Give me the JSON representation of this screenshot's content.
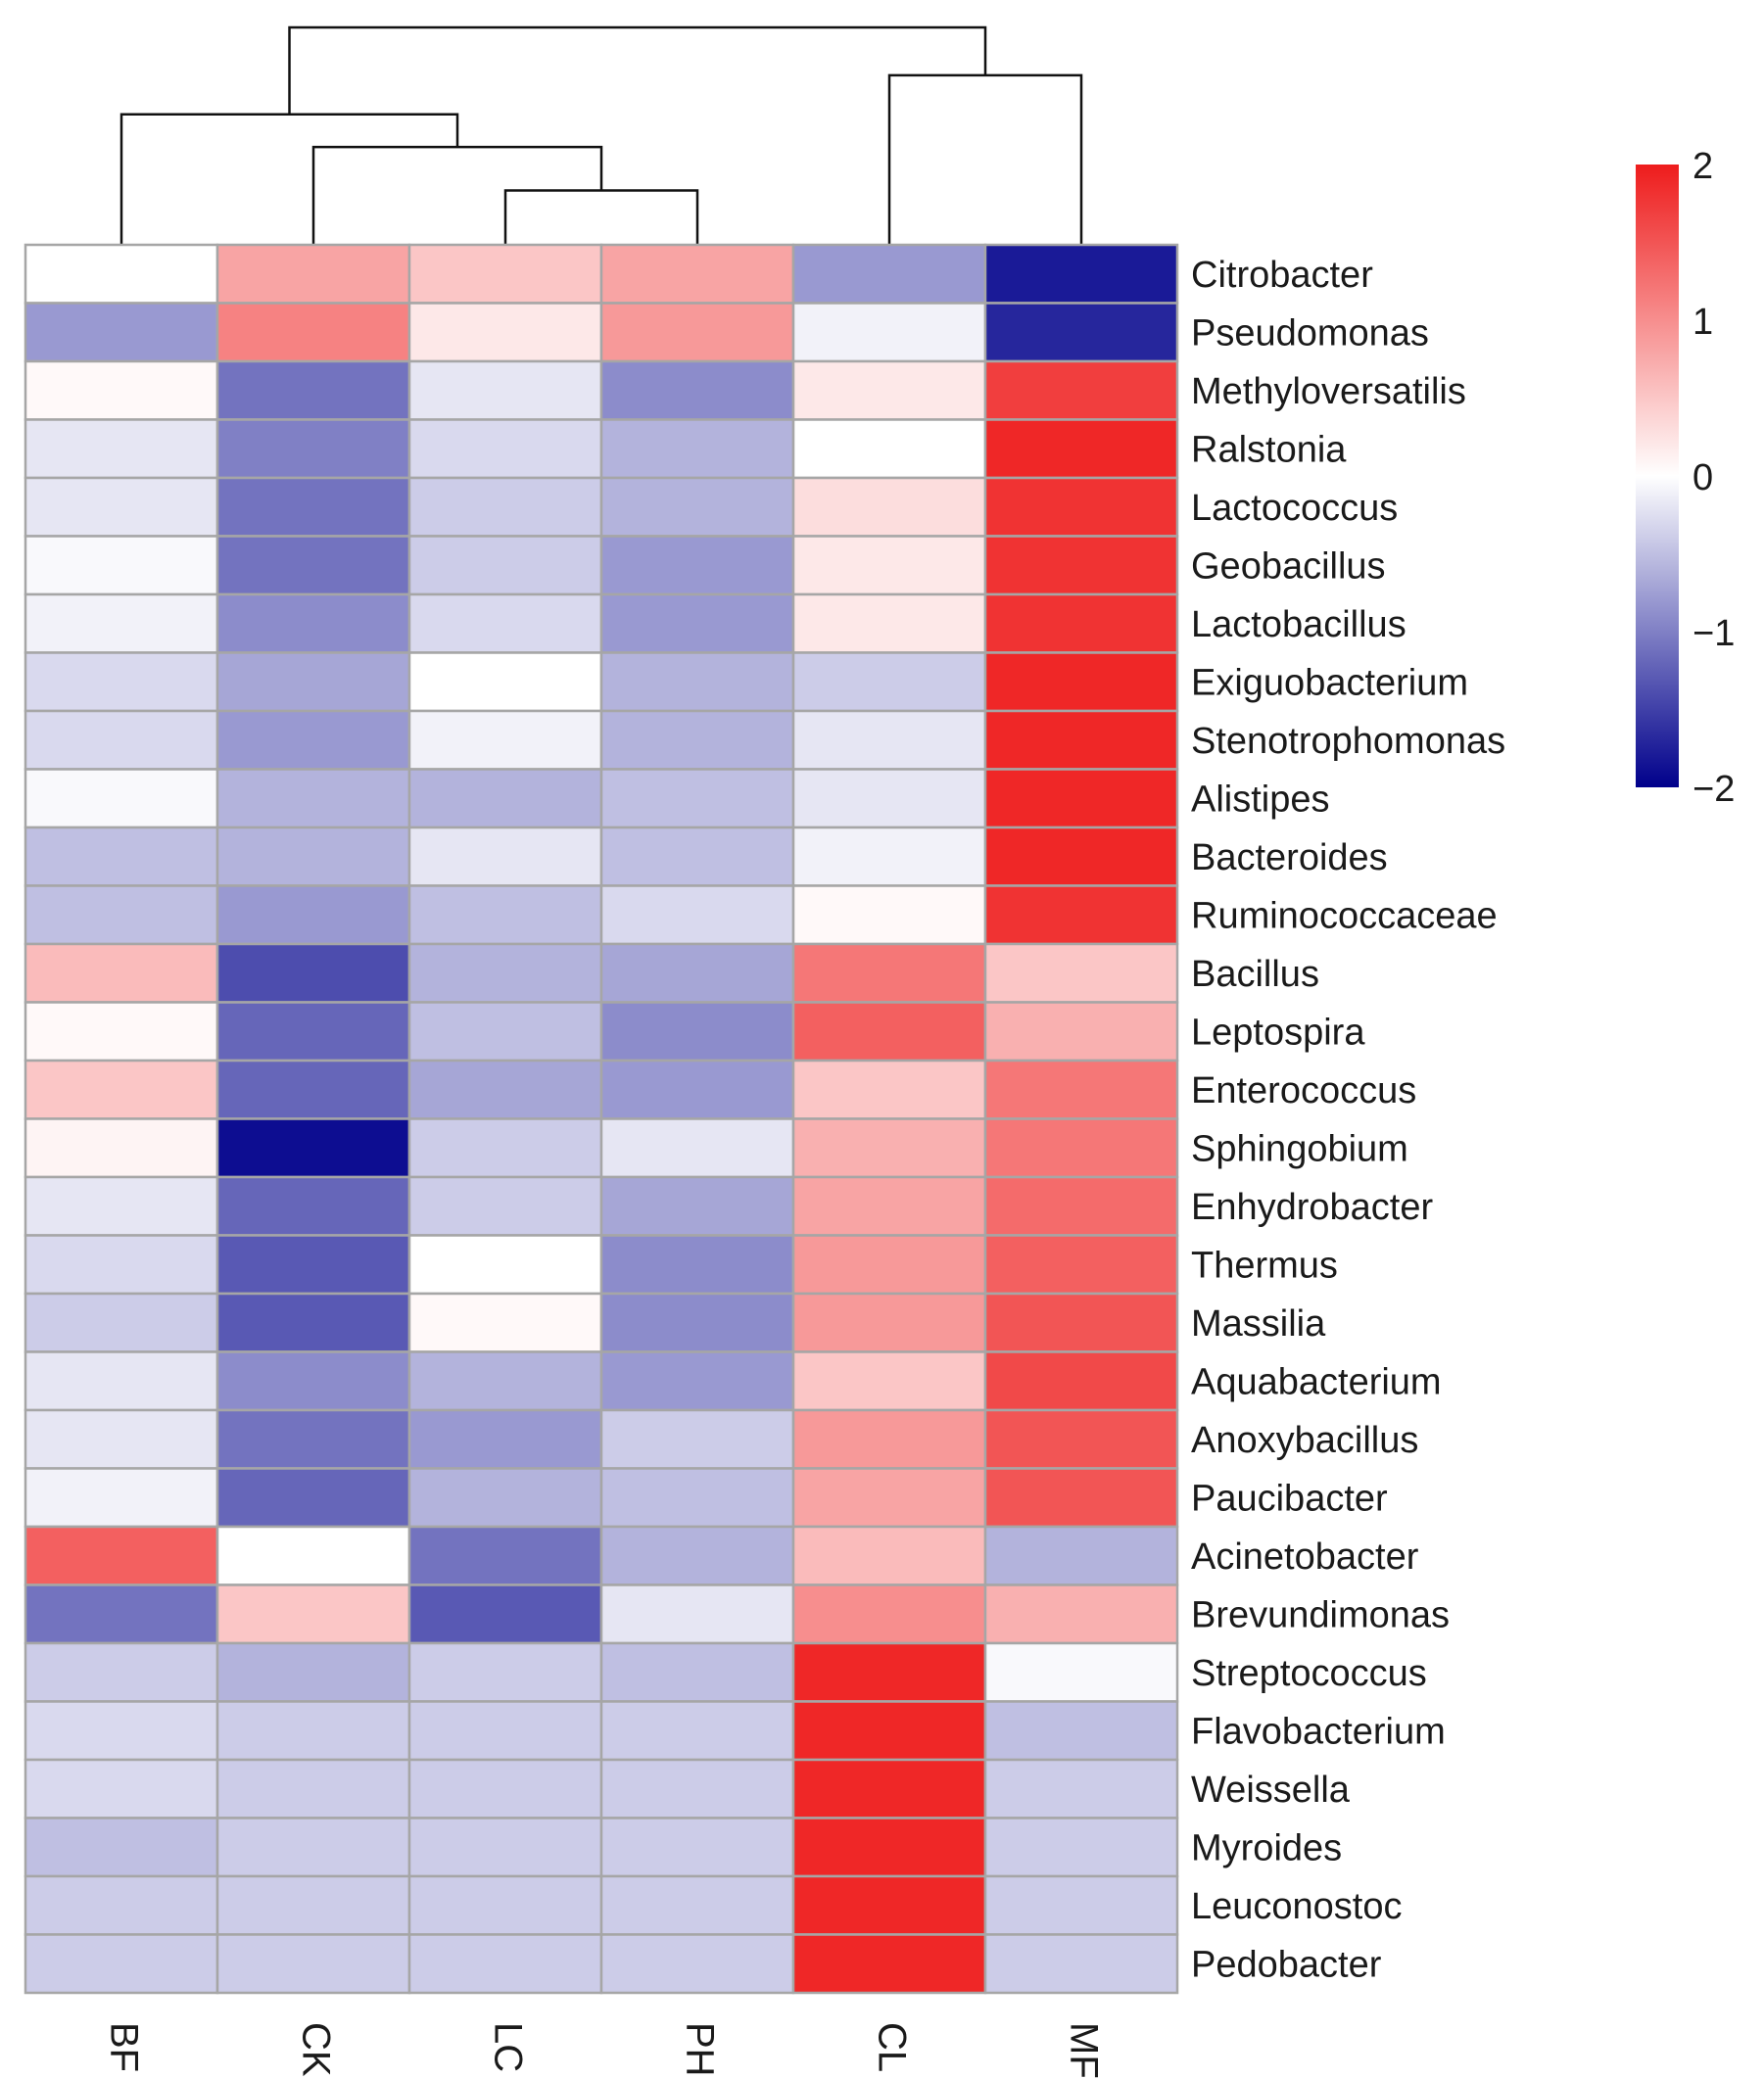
{
  "chart_data": {
    "type": "heatmap",
    "title": "",
    "columns": [
      "BF",
      "CK",
      "LC",
      "PH",
      "CL",
      "MF"
    ],
    "rows": [
      "Citrobacter",
      "Pseudomonas",
      "Methyloversatilis",
      "Ralstonia",
      "Lactococcus",
      "Geobacillus",
      "Lactobacillus",
      "Exiguobacterium",
      "Stenotrophomonas",
      "Alistipes",
      "Bacteroides",
      "Ruminococcaceae",
      "Bacillus",
      "Leptospira",
      "Enterococcus",
      "Sphingobium",
      "Enhydrobacter",
      "Thermus",
      "Massilia",
      "Aquabacterium",
      "Anoxybacillus",
      "Paucibacter",
      "Acinetobacter",
      "Brevundimonas",
      "Streptococcus",
      "Flavobacterium",
      "Weissella",
      "Myroides",
      "Leuconostoc",
      "Pedobacter"
    ],
    "values": [
      [
        0.0,
        0.8,
        0.5,
        0.8,
        -0.8,
        -1.8
      ],
      [
        -0.8,
        1.1,
        0.2,
        0.9,
        -0.1,
        -1.7
      ],
      [
        0.05,
        -1.1,
        -0.2,
        -0.9,
        0.2,
        1.7
      ],
      [
        -0.2,
        -1.0,
        -0.3,
        -0.6,
        0.0,
        1.9
      ],
      [
        -0.2,
        -1.1,
        -0.4,
        -0.6,
        0.3,
        1.8
      ],
      [
        -0.05,
        -1.1,
        -0.4,
        -0.8,
        0.2,
        1.8
      ],
      [
        -0.1,
        -0.9,
        -0.3,
        -0.8,
        0.2,
        1.8
      ],
      [
        -0.3,
        -0.7,
        0.0,
        -0.6,
        -0.4,
        1.9
      ],
      [
        -0.3,
        -0.8,
        -0.1,
        -0.6,
        -0.2,
        1.9
      ],
      [
        -0.05,
        -0.6,
        -0.6,
        -0.5,
        -0.2,
        1.9
      ],
      [
        -0.5,
        -0.6,
        -0.2,
        -0.5,
        -0.1,
        1.9
      ],
      [
        -0.5,
        -0.8,
        -0.5,
        -0.3,
        0.05,
        1.8
      ],
      [
        0.6,
        -1.4,
        -0.6,
        -0.7,
        1.2,
        0.5
      ],
      [
        0.05,
        -1.2,
        -0.5,
        -0.9,
        1.4,
        0.7
      ],
      [
        0.5,
        -1.2,
        -0.7,
        -0.8,
        0.5,
        1.2
      ],
      [
        0.1,
        -1.9,
        -0.4,
        -0.2,
        0.7,
        1.2
      ],
      [
        -0.2,
        -1.2,
        -0.4,
        -0.7,
        0.8,
        1.3
      ],
      [
        -0.3,
        -1.3,
        0.0,
        -0.9,
        0.9,
        1.4
      ],
      [
        -0.4,
        -1.3,
        0.05,
        -0.9,
        0.9,
        1.5
      ],
      [
        -0.2,
        -0.9,
        -0.6,
        -0.8,
        0.5,
        1.6
      ],
      [
        -0.2,
        -1.1,
        -0.8,
        -0.4,
        0.9,
        1.5
      ],
      [
        -0.1,
        -1.2,
        -0.6,
        -0.5,
        0.8,
        1.5
      ],
      [
        1.4,
        0.0,
        -1.1,
        -0.6,
        0.6,
        -0.6
      ],
      [
        -1.1,
        0.5,
        -1.3,
        -0.2,
        1.0,
        0.7
      ],
      [
        -0.4,
        -0.6,
        -0.4,
        -0.5,
        1.9,
        -0.05
      ],
      [
        -0.3,
        -0.4,
        -0.4,
        -0.4,
        1.9,
        -0.5
      ],
      [
        -0.3,
        -0.4,
        -0.4,
        -0.4,
        1.9,
        -0.4
      ],
      [
        -0.5,
        -0.4,
        -0.4,
        -0.4,
        1.9,
        -0.4
      ],
      [
        -0.4,
        -0.4,
        -0.4,
        -0.4,
        1.9,
        -0.4
      ],
      [
        -0.4,
        -0.4,
        -0.4,
        -0.4,
        1.9,
        -0.4
      ]
    ],
    "colorbar": {
      "ticks": [
        2,
        1,
        0,
        -1,
        -2
      ],
      "tick_labels": [
        "2",
        "1",
        "0",
        "−1",
        "−2"
      ],
      "range": [
        -2,
        2
      ],
      "low_color": "#00008b",
      "mid_color": "#ffffff",
      "high_color": "#ee1c1c"
    },
    "column_dendrogram": {
      "leaf_order": [
        "BF",
        "CK",
        "LC",
        "PH",
        "CL",
        "MF"
      ],
      "merges": [
        {
          "left": "LC",
          "right": "PH",
          "height": 0.25
        },
        {
          "left": "CK",
          "right": "LC+PH",
          "height": 0.45
        },
        {
          "left": "BF",
          "right": "CK+LC+PH",
          "height": 0.6
        },
        {
          "left": "CL",
          "right": "MF",
          "height": 0.78
        },
        {
          "left": "BF+CK+LC+PH",
          "right": "CL+MF",
          "height": 1.0
        }
      ]
    }
  }
}
